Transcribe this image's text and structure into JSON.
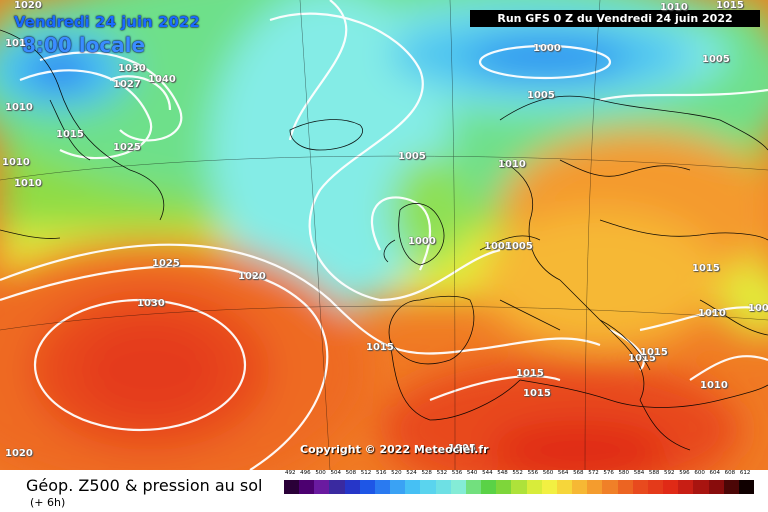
{
  "header": {
    "date": "Vendredi 24 juin 2022",
    "time": "8:00 locale",
    "run": "Run GFS 0 Z du Vendredi 24 juin 2022"
  },
  "copyright": "Copyright © 2022 Meteociel.fr",
  "footer": {
    "title": "Géop. Z500 & pression au sol",
    "subtitle": "(+ 6h)"
  },
  "scale": {
    "values": [
      "492",
      "496",
      "500",
      "504",
      "508",
      "512",
      "516",
      "520",
      "524",
      "528",
      "532",
      "536",
      "540",
      "544",
      "548",
      "552",
      "556",
      "560",
      "564",
      "568",
      "572",
      "576",
      "580",
      "584",
      "588",
      "592",
      "596",
      "600",
      "604",
      "608",
      "612"
    ],
    "colors": [
      "#2a0038",
      "#4c0070",
      "#6a1aa0",
      "#3a2aa0",
      "#2636c8",
      "#1e56e6",
      "#2a7af0",
      "#3aa2f4",
      "#46c0f4",
      "#5ad4ee",
      "#6ee0e4",
      "#84ecd6",
      "#72e07e",
      "#5ad246",
      "#7ed63a",
      "#aee23a",
      "#d8ec3a",
      "#f2f042",
      "#f6d63a",
      "#f6b834",
      "#f49c2e",
      "#f08028",
      "#ec6422",
      "#e84a1e",
      "#e43a1a",
      "#e02a16",
      "#c81e14",
      "#a81410",
      "#880c0c",
      "#4c0606",
      "#100000"
    ]
  },
  "pressure_labels": [
    {
      "text": "1000"
    },
    {
      "text": "1005"
    },
    {
      "text": "1005"
    },
    {
      "text": "1005"
    },
    {
      "text": "1010"
    },
    {
      "text": "1030"
    },
    {
      "text": "1040"
    },
    {
      "text": "1027"
    },
    {
      "text": "1015"
    },
    {
      "text": "1025"
    },
    {
      "text": "1010"
    },
    {
      "text": "1010"
    },
    {
      "text": "1025"
    },
    {
      "text": "1020"
    },
    {
      "text": "1005"
    },
    {
      "text": "1010"
    },
    {
      "text": "1000"
    },
    {
      "text": "1005"
    },
    {
      "text": "1005"
    },
    {
      "text": "1030"
    },
    {
      "text": "1015"
    },
    {
      "text": "1015"
    },
    {
      "text": "1015"
    },
    {
      "text": "1015"
    },
    {
      "text": "1015"
    },
    {
      "text": "1010"
    },
    {
      "text": "1005"
    },
    {
      "text": "1015"
    },
    {
      "text": "1010"
    },
    {
      "text": "1020"
    },
    {
      "text": "1010"
    },
    {
      "text": "1020"
    },
    {
      "text": "1015"
    },
    {
      "text": "101"
    }
  ]
}
